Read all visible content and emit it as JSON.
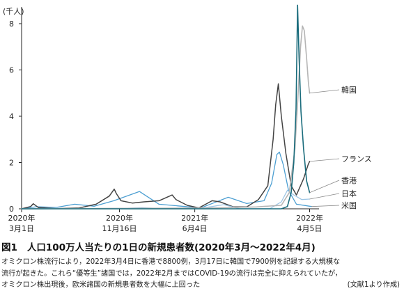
{
  "chart_data": {
    "type": "line",
    "unit_label": "(千人)",
    "ylim": [
      0,
      8
    ],
    "y_ticks": [
      0,
      2,
      4,
      6,
      8
    ],
    "xlim": [
      "2020-03-01",
      "2022-04-30"
    ],
    "x_ticks": [
      {
        "date": "2020-03-01",
        "year": "2020年",
        "day": "3月1日"
      },
      {
        "date": "2020-11-16",
        "year": "2020年",
        "day": "11月16日"
      },
      {
        "date": "2021-06-04",
        "year": "2021年",
        "day": "6月4日"
      },
      {
        "date": "2022-04-05",
        "year": "2022年",
        "day": "4月5日"
      }
    ],
    "grid": false,
    "series": [
      {
        "name": "米国",
        "color": "#4d9fd2",
        "width": 1.3,
        "points": [
          [
            "2020-03-01",
            0
          ],
          [
            "2020-04-10",
            0.09
          ],
          [
            "2020-06-01",
            0.06
          ],
          [
            "2020-07-20",
            0.2
          ],
          [
            "2020-09-10",
            0.11
          ],
          [
            "2020-11-01",
            0.35
          ],
          [
            "2021-01-08",
            0.75
          ],
          [
            "2021-03-01",
            0.2
          ],
          [
            "2021-06-20",
            0.04
          ],
          [
            "2021-09-01",
            0.5
          ],
          [
            "2021-10-20",
            0.23
          ],
          [
            "2021-12-05",
            0.35
          ],
          [
            "2021-12-25",
            1.1
          ],
          [
            "2022-01-08",
            2.35
          ],
          [
            "2022-01-15",
            2.45
          ],
          [
            "2022-01-25",
            1.9
          ],
          [
            "2022-02-08",
            0.8
          ],
          [
            "2022-03-01",
            0.2
          ],
          [
            "2022-04-10",
            0.1
          ]
        ]
      },
      {
        "name": "フランス",
        "color": "#444444",
        "width": 1.5,
        "points": [
          [
            "2020-03-01",
            0
          ],
          [
            "2020-03-25",
            0.1
          ],
          [
            "2020-04-01",
            0.22
          ],
          [
            "2020-04-15",
            0.05
          ],
          [
            "2020-06-01",
            0.01
          ],
          [
            "2020-08-01",
            0.04
          ],
          [
            "2020-09-15",
            0.2
          ],
          [
            "2020-10-20",
            0.55
          ],
          [
            "2020-11-02",
            0.85
          ],
          [
            "2020-11-08",
            0.65
          ],
          [
            "2020-11-20",
            0.35
          ],
          [
            "2020-12-20",
            0.25
          ],
          [
            "2021-01-20",
            0.3
          ],
          [
            "2021-03-01",
            0.35
          ],
          [
            "2021-04-05",
            0.6
          ],
          [
            "2021-04-15",
            0.4
          ],
          [
            "2021-05-15",
            0.15
          ],
          [
            "2021-06-15",
            0.04
          ],
          [
            "2021-07-20",
            0.35
          ],
          [
            "2021-08-10",
            0.3
          ],
          [
            "2021-09-15",
            0.08
          ],
          [
            "2021-10-20",
            0.08
          ],
          [
            "2021-11-20",
            0.4
          ],
          [
            "2021-12-15",
            1.0
          ],
          [
            "2021-12-29",
            3.0
          ],
          [
            "2022-01-05",
            4.5
          ],
          [
            "2022-01-12",
            5.4
          ],
          [
            "2022-01-20",
            4.0
          ],
          [
            "2022-02-01",
            2.4
          ],
          [
            "2022-02-15",
            1.0
          ],
          [
            "2022-03-01",
            0.6
          ],
          [
            "2022-03-20",
            1.3
          ],
          [
            "2022-04-01",
            1.9
          ],
          [
            "2022-04-05",
            2.05
          ]
        ]
      },
      {
        "name": "日本",
        "color": "#9ec6e5",
        "width": 1.3,
        "points": [
          [
            "2020-03-01",
            0
          ],
          [
            "2020-05-01",
            0.003
          ],
          [
            "2020-08-01",
            0.01
          ],
          [
            "2020-12-01",
            0.02
          ],
          [
            "2021-01-15",
            0.05
          ],
          [
            "2021-03-01",
            0.01
          ],
          [
            "2021-05-15",
            0.04
          ],
          [
            "2021-06-15",
            0.01
          ],
          [
            "2021-08-20",
            0.18
          ],
          [
            "2021-10-01",
            0.002
          ],
          [
            "2021-12-20",
            0.002
          ],
          [
            "2022-01-20",
            0.3
          ],
          [
            "2022-02-05",
            0.8
          ],
          [
            "2022-02-20",
            0.62
          ],
          [
            "2022-03-15",
            0.4
          ],
          [
            "2022-04-05",
            0.42
          ]
        ]
      },
      {
        "name": "韓国",
        "color": "#b5b5b5",
        "width": 1.6,
        "points": [
          [
            "2020-03-01",
            0
          ],
          [
            "2021-01-01",
            0.02
          ],
          [
            "2021-08-01",
            0.04
          ],
          [
            "2021-11-15",
            0.08
          ],
          [
            "2021-12-20",
            0.12
          ],
          [
            "2022-01-20",
            0.15
          ],
          [
            "2022-02-10",
            0.7
          ],
          [
            "2022-02-25",
            2.6
          ],
          [
            "2022-03-05",
            4.8
          ],
          [
            "2022-03-12",
            7.0
          ],
          [
            "2022-03-17",
            7.9
          ],
          [
            "2022-03-22",
            7.7
          ],
          [
            "2022-03-28",
            6.5
          ],
          [
            "2022-04-02",
            5.4
          ],
          [
            "2022-04-05",
            5.0
          ]
        ]
      },
      {
        "name": "香港",
        "color": "#1a6c7c",
        "width": 1.6,
        "points": [
          [
            "2020-03-01",
            0
          ],
          [
            "2022-01-20",
            0.0
          ],
          [
            "2022-02-05",
            0.1
          ],
          [
            "2022-02-15",
            0.7
          ],
          [
            "2022-02-22",
            2.0
          ],
          [
            "2022-02-28",
            4.3
          ],
          [
            "2022-03-04",
            8.8
          ],
          [
            "2022-03-08",
            6.5
          ],
          [
            "2022-03-13",
            4.2
          ],
          [
            "2022-03-20",
            2.6
          ],
          [
            "2022-03-28",
            1.2
          ],
          [
            "2022-04-05",
            0.7
          ]
        ]
      }
    ],
    "annotations": {
      "value_at_2022_03_04_hongkong": "8800",
      "value_at_2022_03_17_korea": "7900"
    }
  },
  "caption": {
    "number": "図1",
    "title": "人口100万人当たりの1日の新規患者数(2020年3月〜2022年4月)",
    "lines": [
      "オミクロン株流行により，2022年3月4日に香港で8800例，3月17日に韓国で7900例を記録する大規模な",
      "流行が起きた。これら“優等生”諸国では，2022年2月まではCOVID-19の流行は完全に抑えられていたが，",
      "オミクロン株出現後，欧米諸国の新規患者数を大幅に上回った"
    ],
    "source": "(文献1より作成)"
  },
  "colors": {
    "axis": "#222222",
    "leader": "#888888"
  }
}
